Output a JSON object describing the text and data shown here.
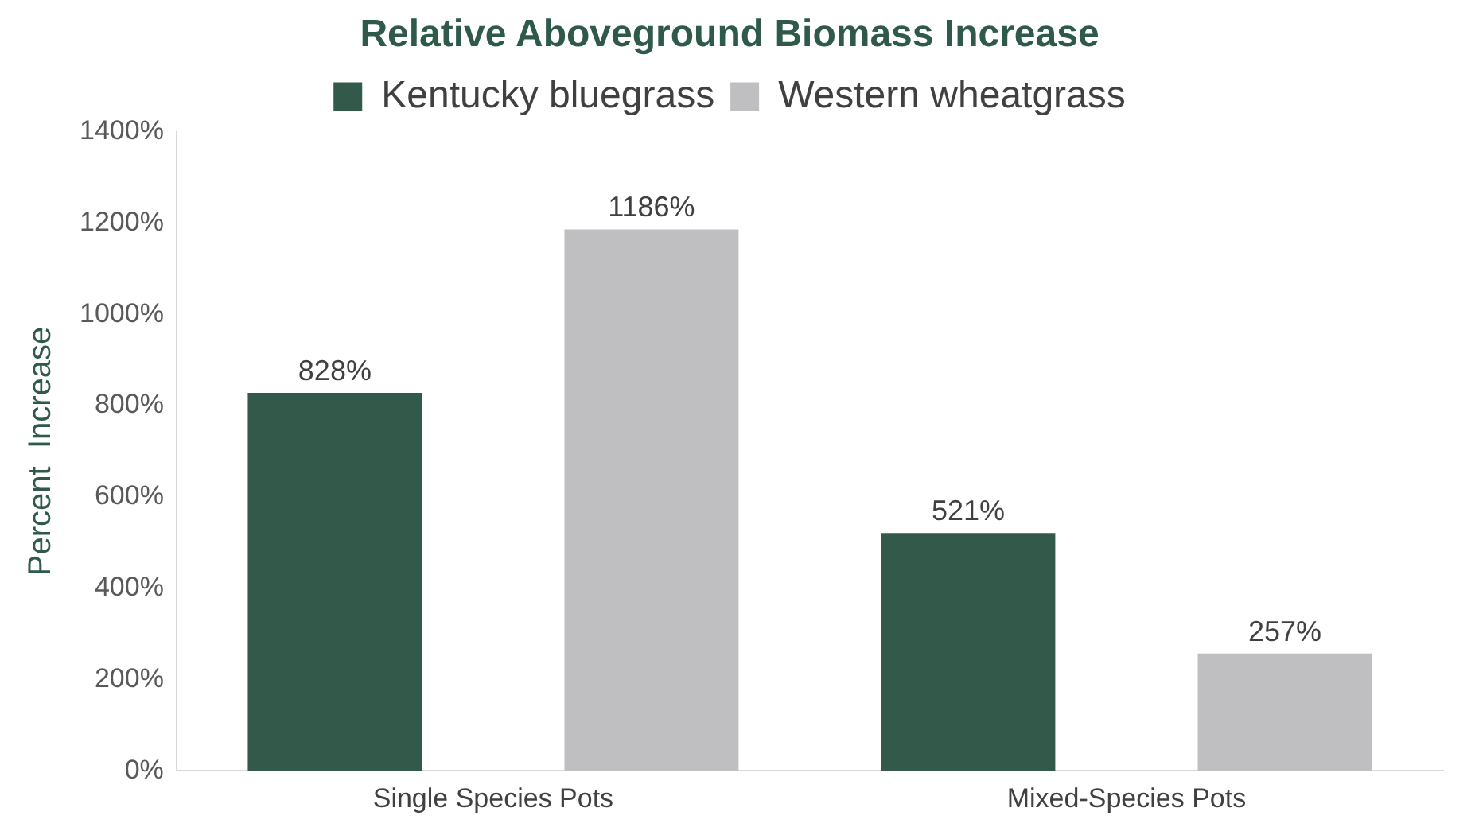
{
  "chart_data": {
    "type": "bar",
    "title": "Relative Aboveground Biomass Increase",
    "ylabel": "Percent  Increase",
    "categories": [
      "Single Species Pots",
      "Mixed-Species Pots"
    ],
    "series": [
      {
        "name": "Kentucky bluegrass",
        "color": "#33594b",
        "values": [
          828,
          521
        ],
        "value_labels": [
          "828%",
          "521%"
        ]
      },
      {
        "name": "Western wheatgrass",
        "color": "#bfbfc1",
        "values": [
          1186,
          257
        ],
        "value_labels": [
          "1186%",
          "257%"
        ]
      }
    ],
    "ylim": [
      0,
      1400
    ],
    "yticks": [
      {
        "value": 0,
        "label": "0%"
      },
      {
        "value": 200,
        "label": "200%"
      },
      {
        "value": 400,
        "label": "400%"
      },
      {
        "value": 600,
        "label": "600%"
      },
      {
        "value": 800,
        "label": "800%"
      },
      {
        "value": 1000,
        "label": "1000%"
      },
      {
        "value": 1200,
        "label": "1200%"
      },
      {
        "value": 1400,
        "label": "1400%"
      }
    ],
    "grid": false,
    "legend": "top"
  }
}
